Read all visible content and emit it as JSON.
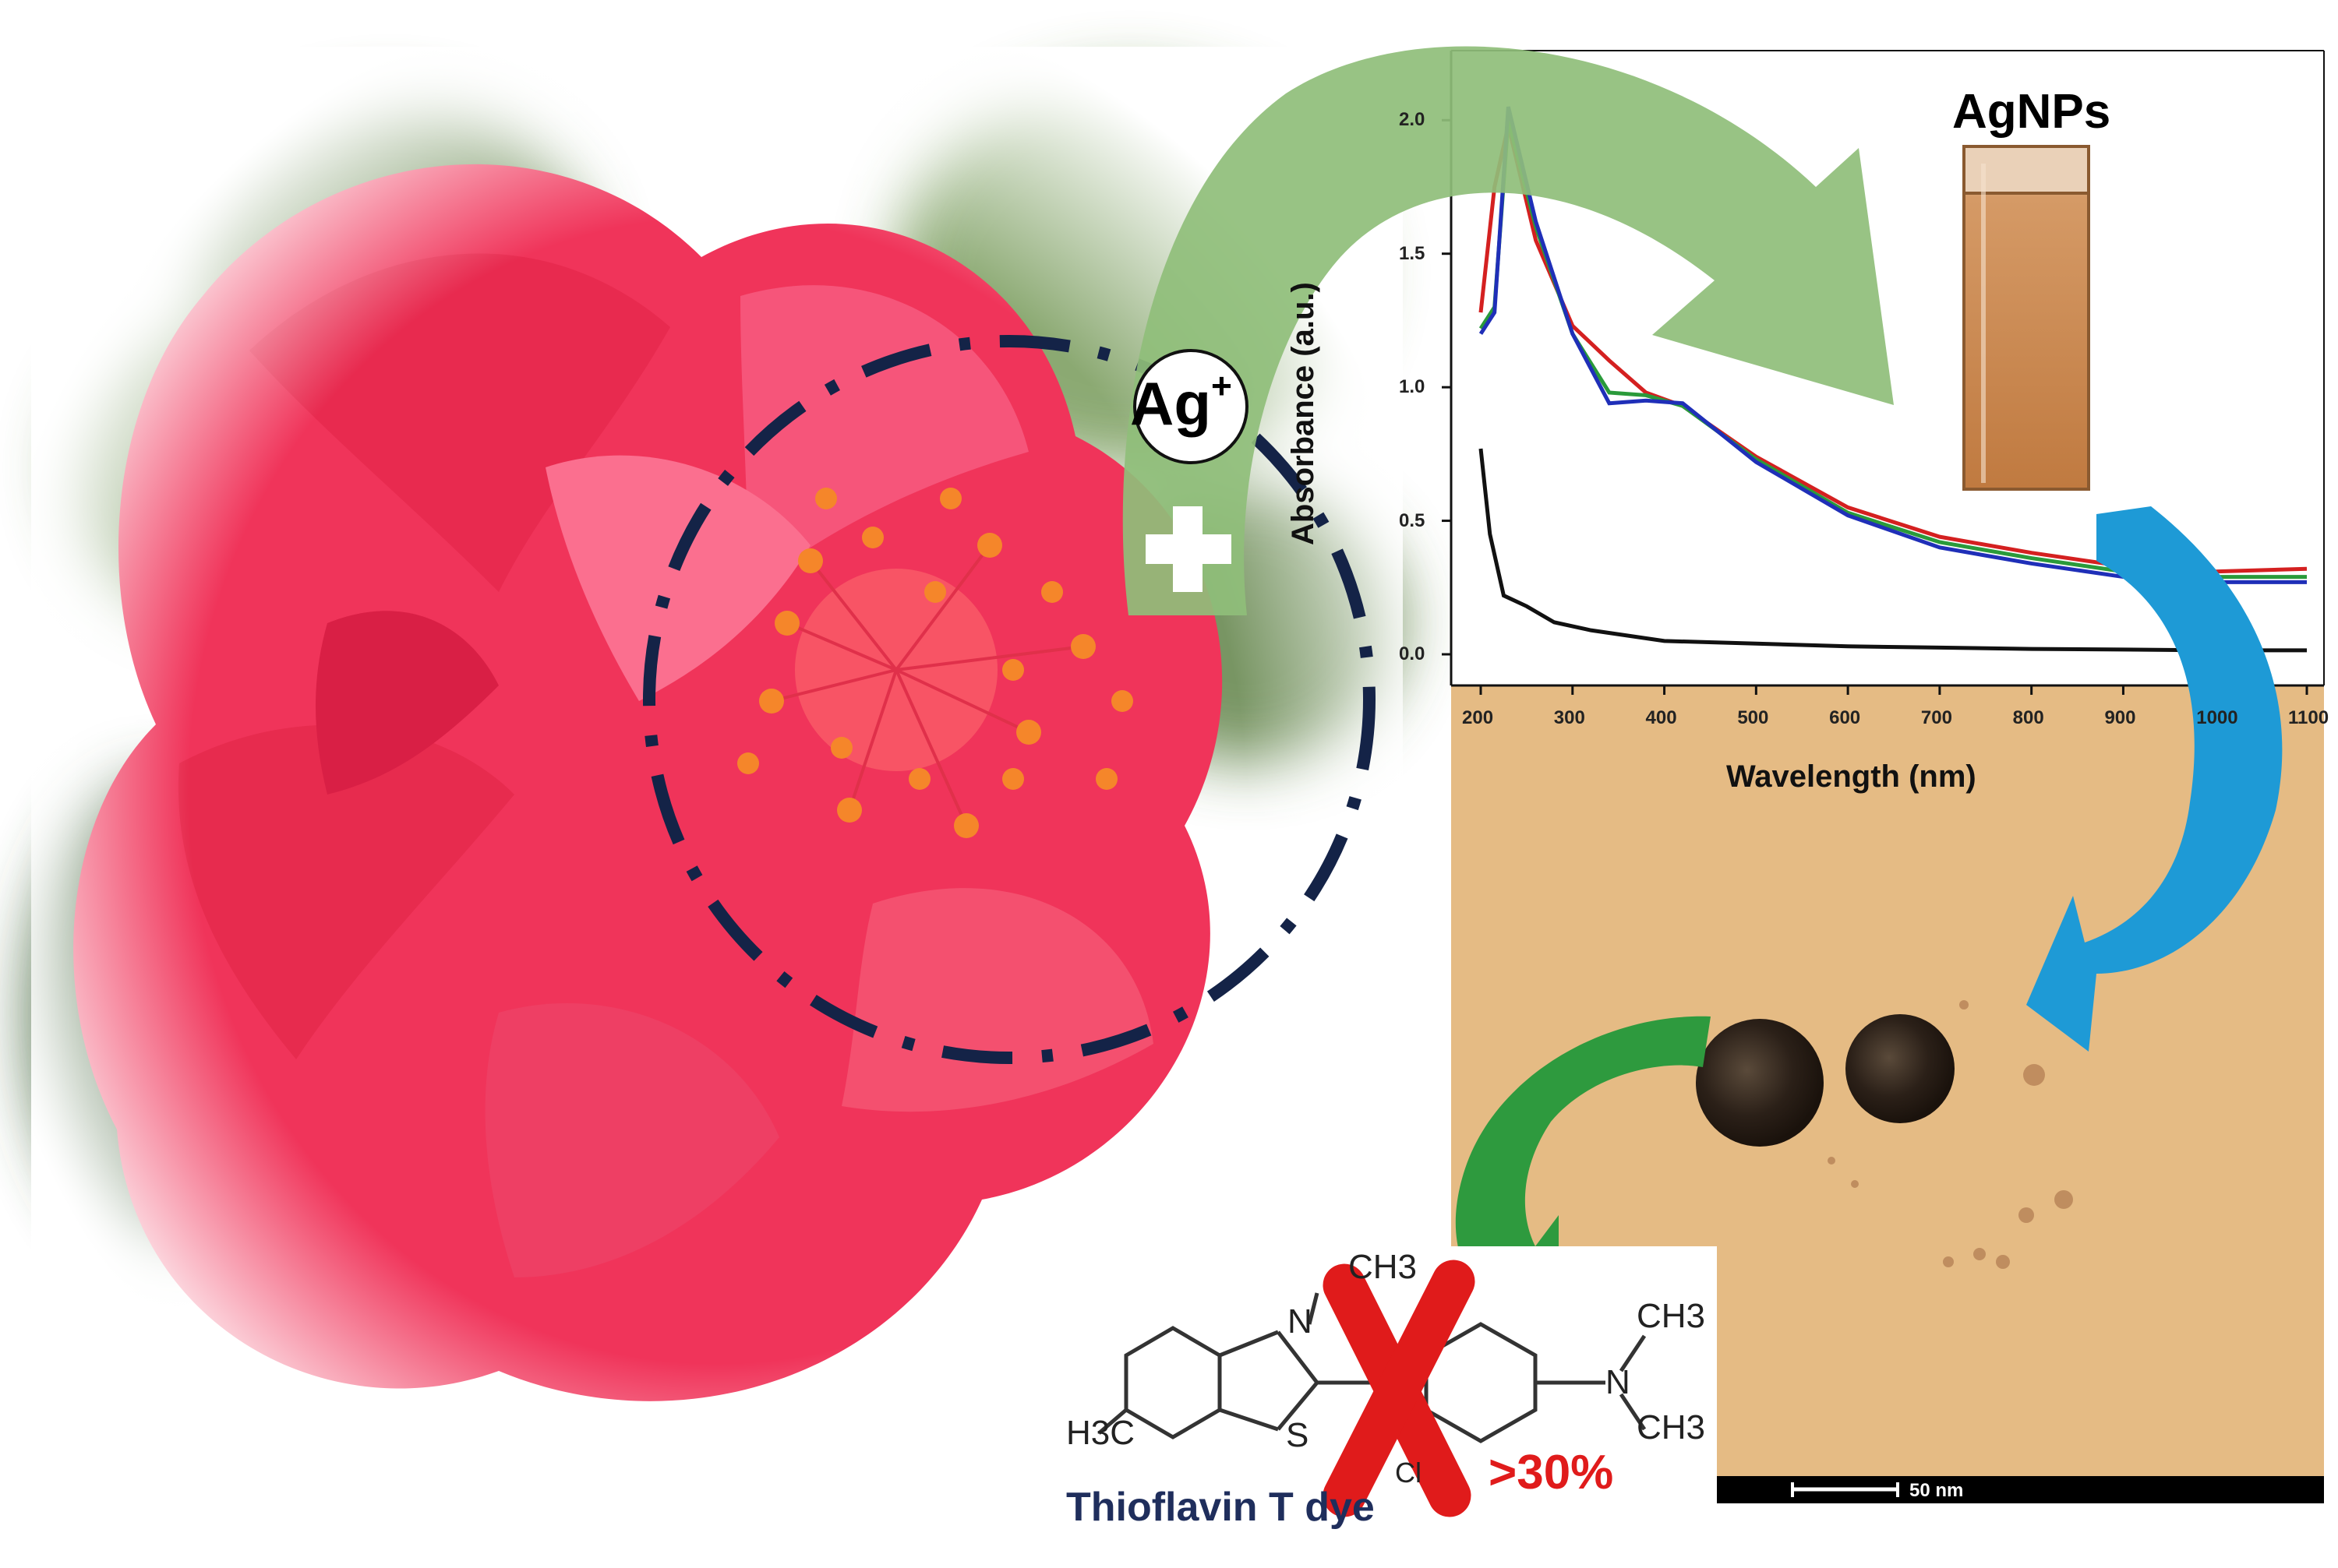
{
  "labels": {
    "ag_ion": "Ag",
    "ag_charge": "+",
    "plus": "+",
    "nanoparticles": "AgNPs",
    "dye_name": "Thioflavin T dye",
    "removal": ">30%",
    "scale_bar": "50 nm"
  },
  "molecule": {
    "ch3_top": "CH3",
    "n_ring": "N",
    "s_ring": "S",
    "chloride": "Cl",
    "h3c_left": "H3C",
    "n_amine": "N",
    "ch3_right_top": "CH3",
    "ch3_right_bottom": "CH3"
  },
  "colors": {
    "flower": "#f0345a",
    "green_arrow": "#8fbe7a",
    "blue_arrow": "#1e9ad6",
    "dark_green_arrow": "#2e9a3e",
    "red_cross": "#e01b1b",
    "dashed_circle": "#142347",
    "tem_background": "#e8c089"
  },
  "chart_data": {
    "type": "line",
    "xlabel": "Wavelength (nm)",
    "ylabel": "Absorbance (a.u.)",
    "xlim": [
      200,
      1100
    ],
    "ylim": [
      0,
      2.1
    ],
    "x_ticks": [
      "200",
      "300",
      "400",
      "500",
      "600",
      "700",
      "800",
      "900",
      "1000",
      "1100"
    ],
    "y_ticks": [
      "0.0",
      "0.5",
      "1.0",
      "1.5",
      "2.0"
    ],
    "grid": false,
    "series": [
      {
        "color": "#d42020",
        "x": [
          200,
          215,
          230,
          260,
          300,
          340,
          380,
          420,
          500,
          600,
          700,
          800,
          900,
          1000,
          1100
        ],
        "y": [
          1.28,
          1.75,
          1.98,
          1.55,
          1.23,
          1.1,
          0.98,
          0.93,
          0.74,
          0.55,
          0.44,
          0.38,
          0.33,
          0.31,
          0.32
        ]
      },
      {
        "color": "#2a9a3a",
        "x": [
          200,
          215,
          230,
          260,
          300,
          340,
          380,
          420,
          500,
          600,
          700,
          800,
          900,
          1000,
          1100
        ],
        "y": [
          1.22,
          1.3,
          2.0,
          1.6,
          1.2,
          0.98,
          0.97,
          0.93,
          0.73,
          0.53,
          0.42,
          0.36,
          0.31,
          0.29,
          0.29
        ]
      },
      {
        "color": "#1f2fb8",
        "x": [
          200,
          215,
          230,
          260,
          300,
          340,
          380,
          420,
          500,
          600,
          700,
          800,
          900,
          1000,
          1100
        ],
        "y": [
          1.2,
          1.28,
          2.05,
          1.62,
          1.2,
          0.94,
          0.95,
          0.94,
          0.72,
          0.52,
          0.4,
          0.34,
          0.29,
          0.27,
          0.27
        ]
      },
      {
        "color": "#111111",
        "x": [
          200,
          210,
          225,
          250,
          280,
          320,
          400,
          500,
          600,
          700,
          800,
          900,
          1000,
          1100
        ],
        "y": [
          0.77,
          0.45,
          0.22,
          0.18,
          0.12,
          0.09,
          0.05,
          0.04,
          0.03,
          0.025,
          0.02,
          0.018,
          0.015,
          0.015
        ]
      }
    ]
  }
}
